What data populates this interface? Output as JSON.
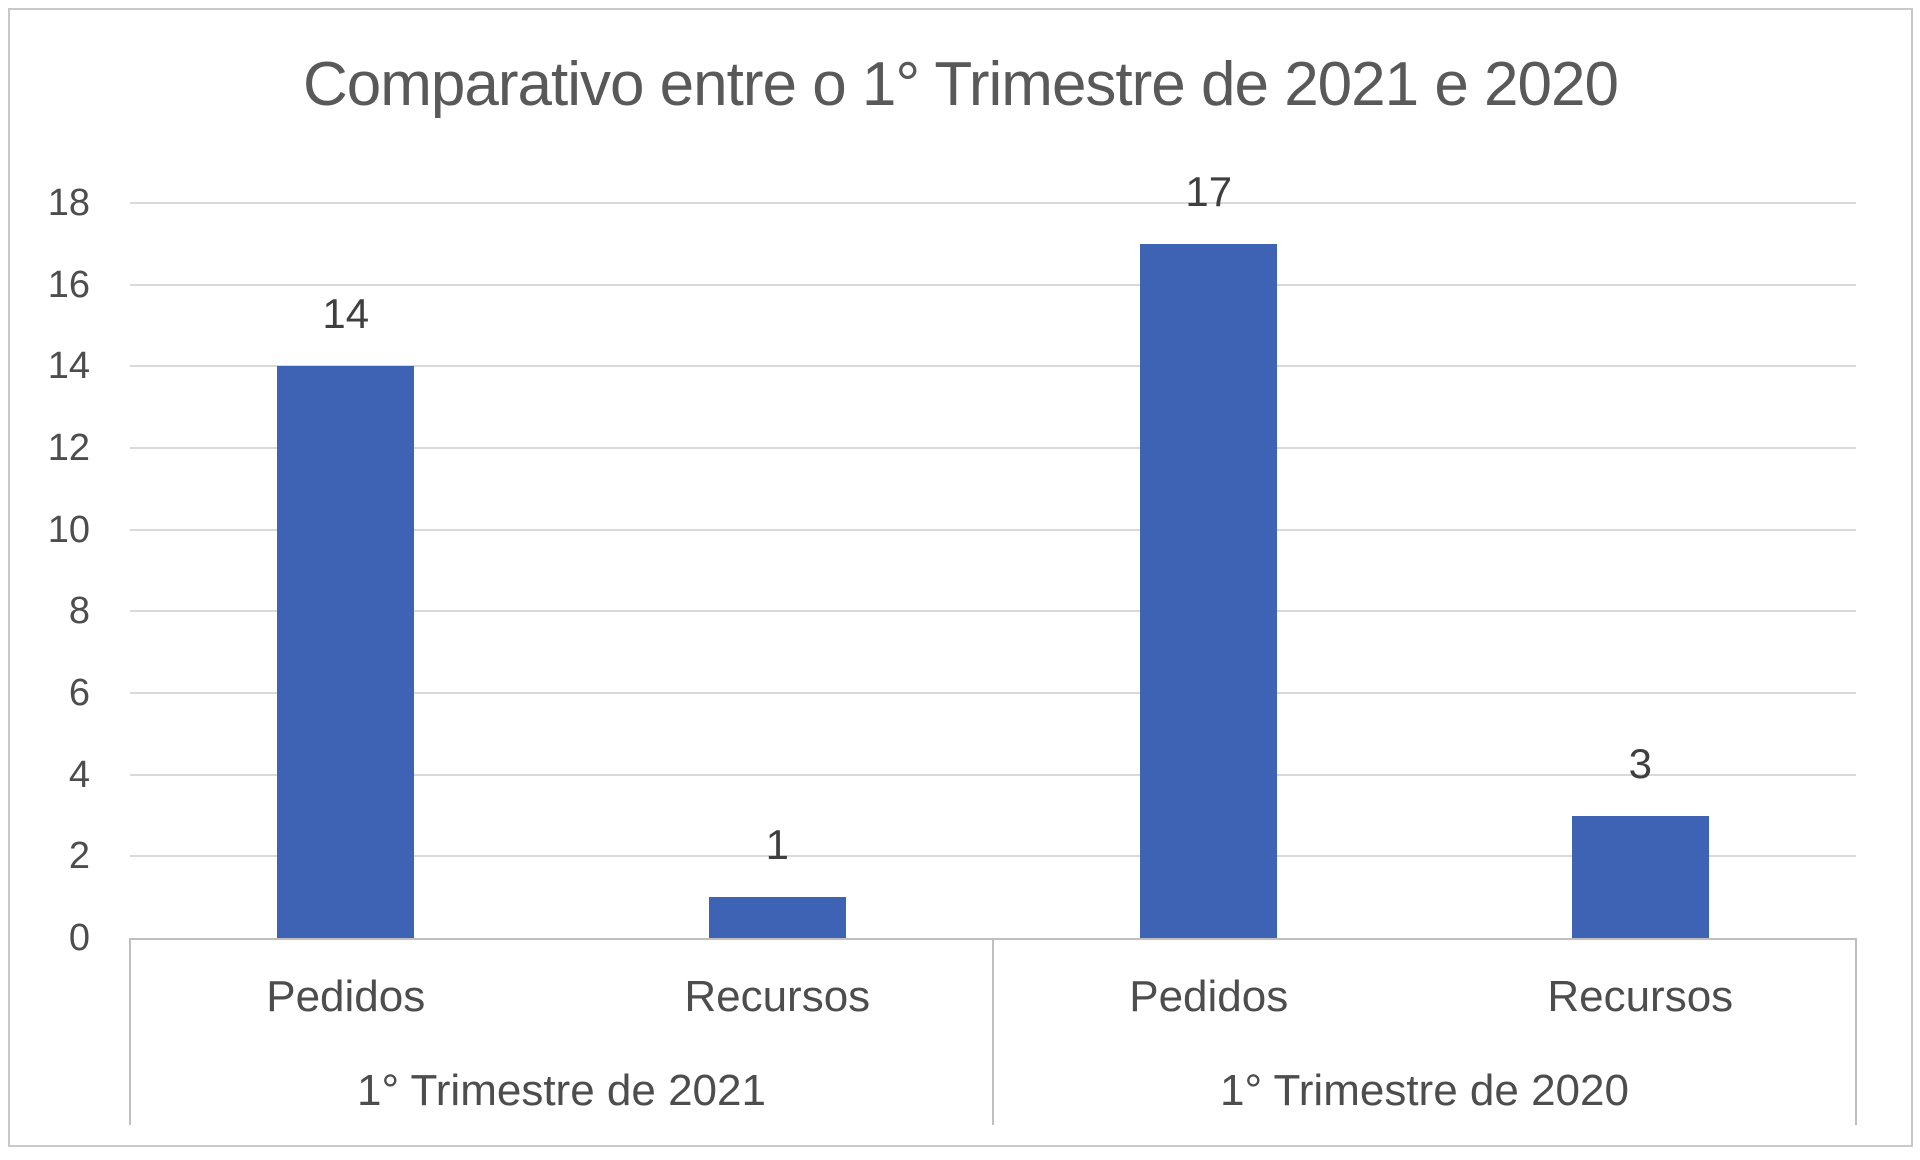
{
  "chart_data": {
    "type": "bar",
    "title": "Comparativo entre o 1° Trimestre de 2021 e 2020",
    "xlabel": "",
    "ylabel": "",
    "ylim": [
      0,
      18
    ],
    "yticks": [
      0,
      2,
      4,
      6,
      8,
      10,
      12,
      14,
      16,
      18
    ],
    "grid": true,
    "legend": false,
    "groups": [
      {
        "label": "1° Trimestre de 2021",
        "categories": [
          "Pedidos",
          "Recursos"
        ],
        "values": [
          14,
          1
        ]
      },
      {
        "label": "1° Trimestre de 2020",
        "categories": [
          "Pedidos",
          "Recursos"
        ],
        "values": [
          17,
          3
        ]
      }
    ],
    "data_labels_shown": true
  },
  "colors": {
    "bar": "#3E63B5",
    "title_text": "#595959",
    "label_text": "#3F3F3F",
    "axis_text": "#4D4D4D",
    "gridline": "#D9D9D9",
    "axis_line": "#BFBFBF",
    "frame_border": "#C9C9C9"
  }
}
